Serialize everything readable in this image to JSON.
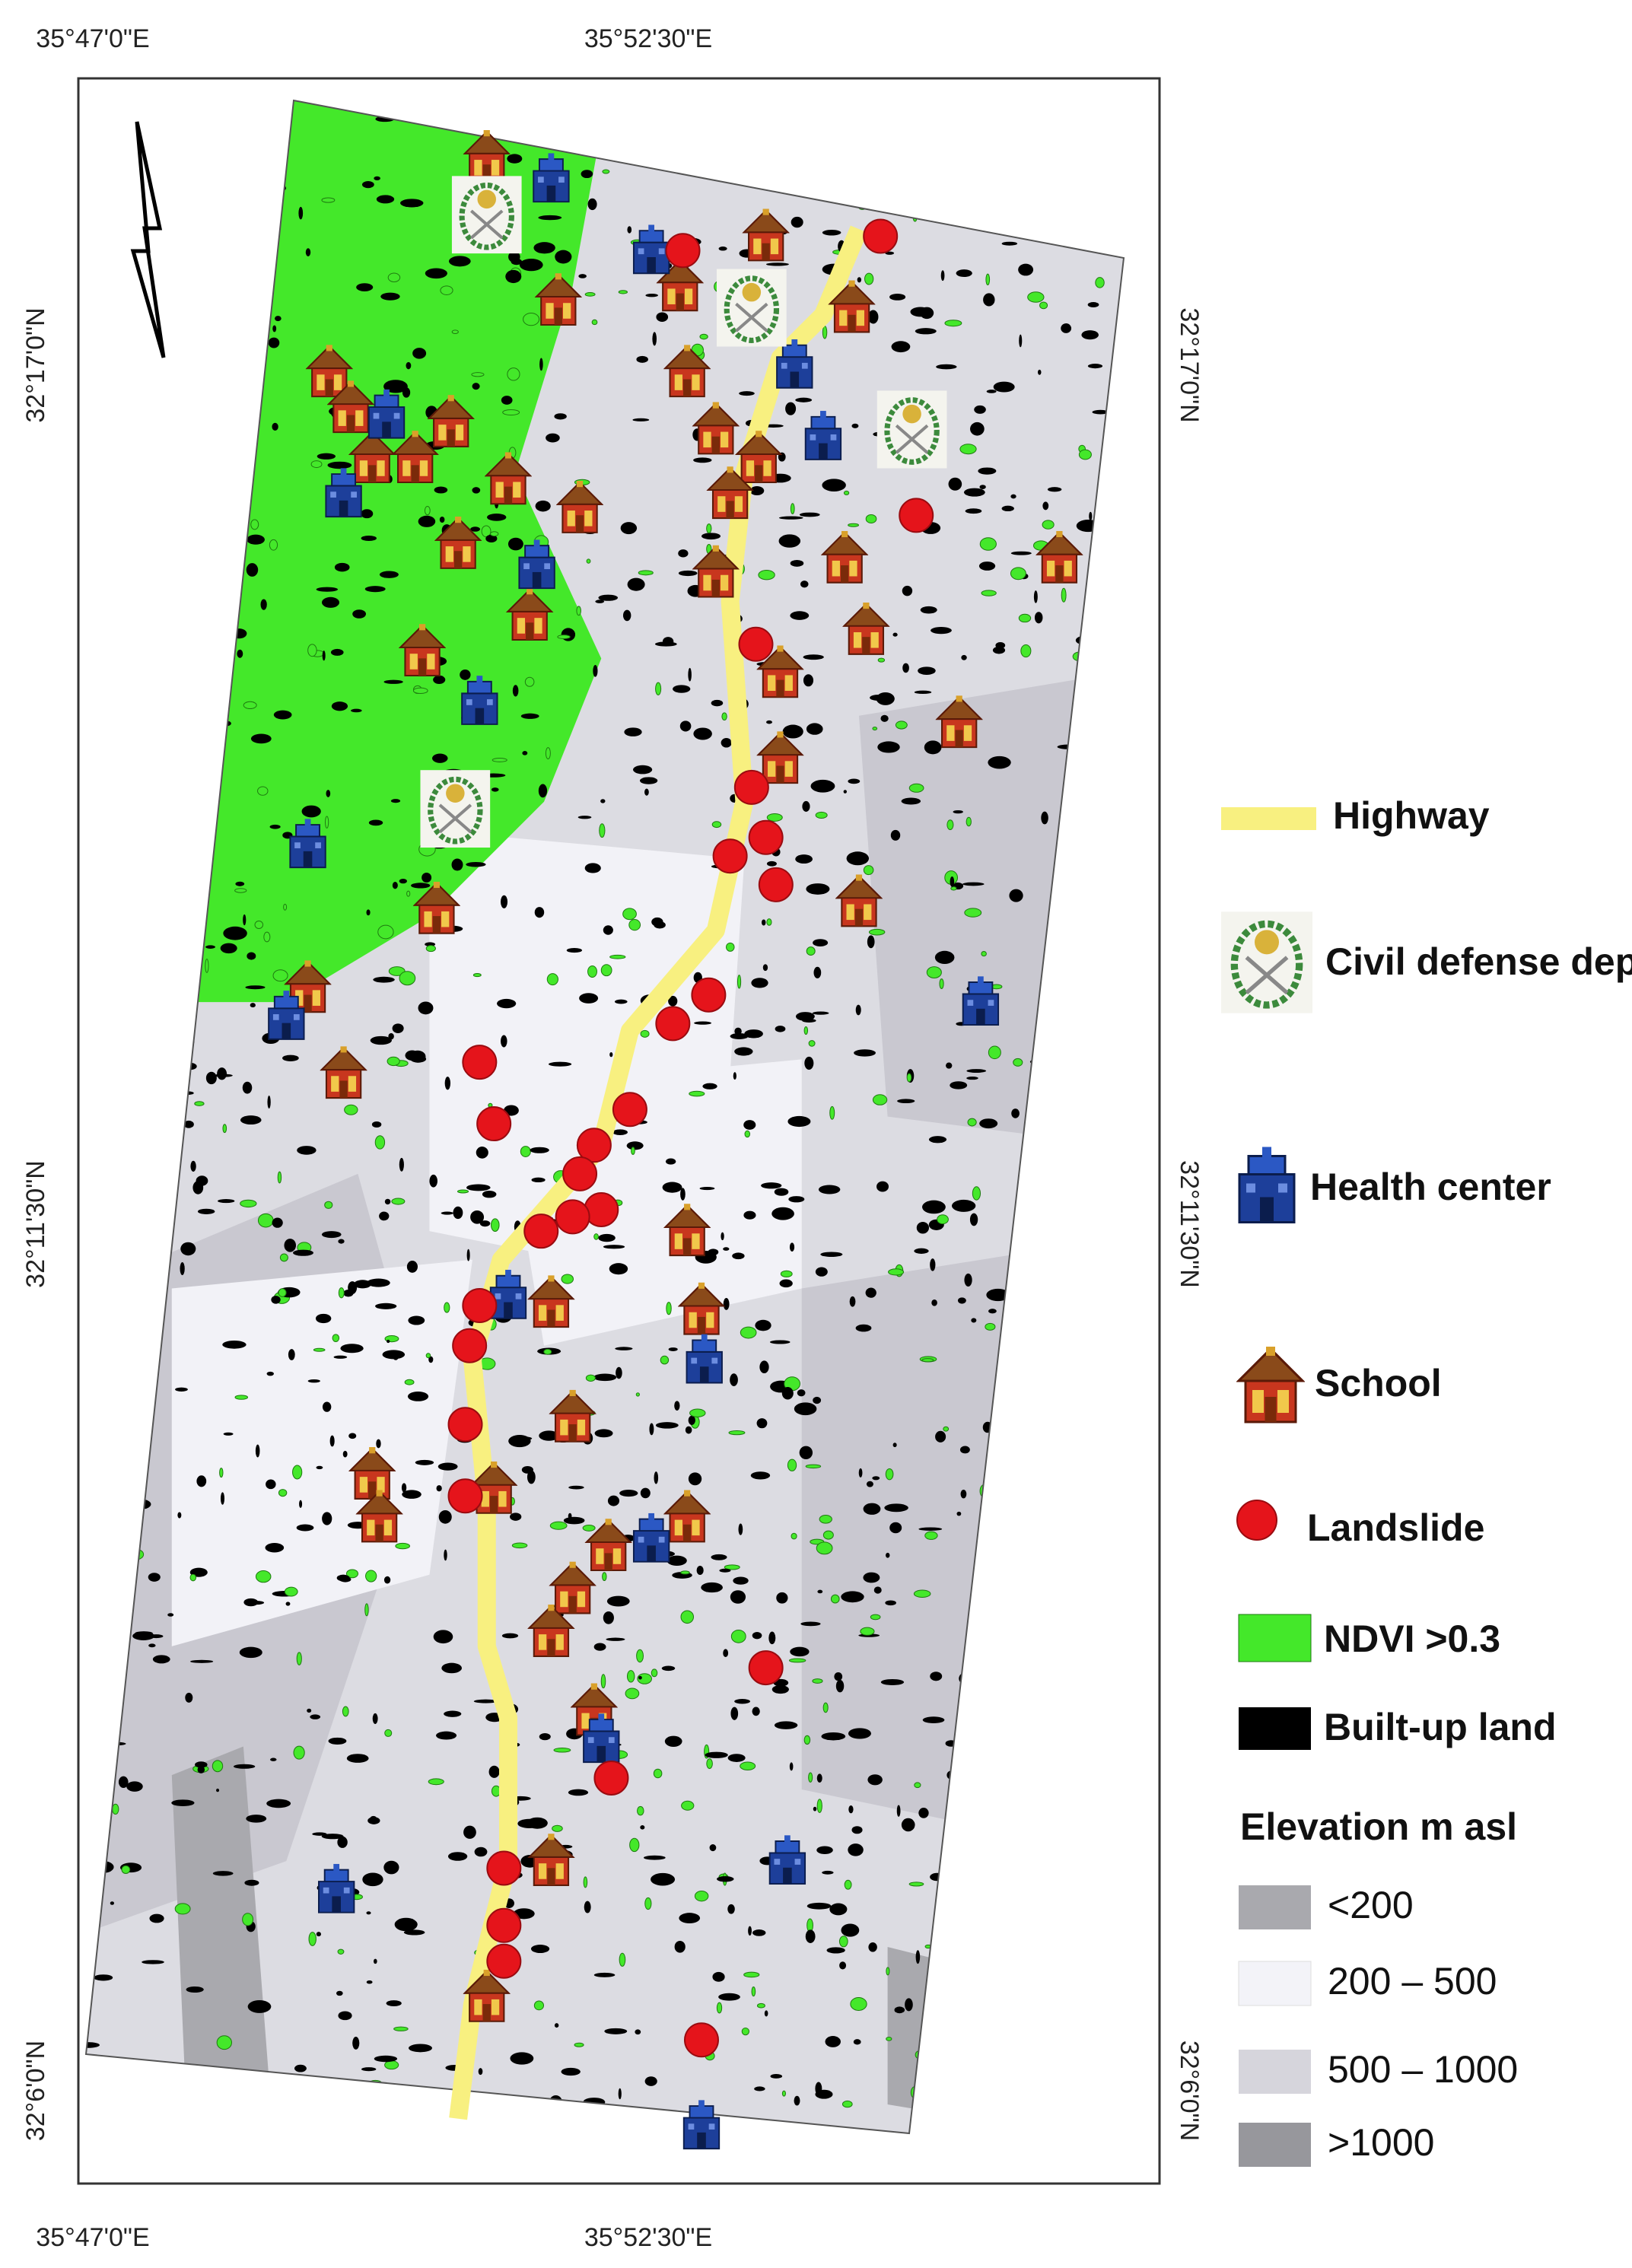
{
  "map": {
    "top_labels": [
      "35°47'0\"E",
      "35°52'30\"E"
    ],
    "bottom_labels": [
      "35°47'0\"E",
      "35°52'30\"E"
    ],
    "left_labels": [
      "32°17'0\"N",
      "32°11'30\"N",
      "32°6'0\"N"
    ],
    "right_labels": [
      "32°17'0\"N",
      "32°11'30\"N",
      "32°6'0\"N"
    ]
  },
  "legend": {
    "items": [
      "Highway",
      "Civil defense dep.",
      "Health center",
      "School",
      "Landslide",
      "NDVI >0.3",
      "Built-up land"
    ],
    "elevation_title": "Elevation m asl",
    "elevation_classes": [
      "<200",
      "200 – 500",
      "500 – 1000",
      ">1000"
    ]
  }
}
